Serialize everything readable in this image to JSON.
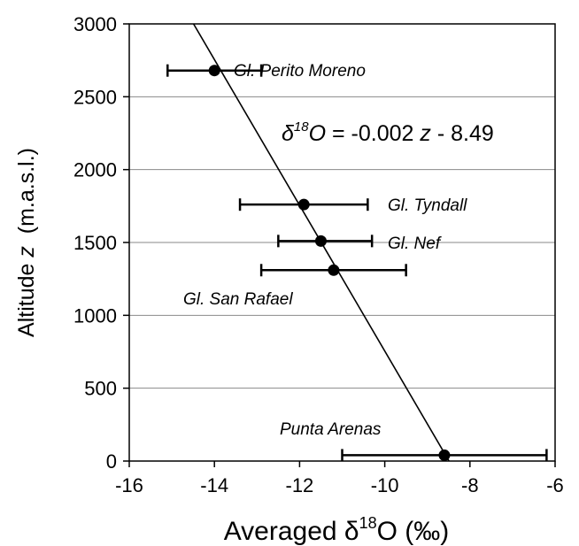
{
  "chart_data": {
    "type": "scatter",
    "xlabel_prefix": "Averaged δ",
    "xlabel_sup": "18",
    "xlabel_suffix": "O (‰)",
    "ylabel_prefix": "Altitude ",
    "ylabel_var": "z",
    "ylabel_suffix": "  (m.a.s.l.)",
    "xlim": [
      -16,
      -6
    ],
    "ylim": [
      0,
      3000
    ],
    "xticks": [
      -16,
      -14,
      -12,
      -10,
      -8,
      -6
    ],
    "yticks": [
      0,
      500,
      1000,
      1500,
      2000,
      2500,
      3000
    ],
    "grid": "horizontal",
    "points": [
      {
        "label": "Gl. Perito Moreno",
        "x": -14.0,
        "y": 2680,
        "xerr_low": -15.1,
        "xerr_high": -12.9
      },
      {
        "label": "Gl. Tyndall",
        "x": -11.9,
        "y": 1760,
        "xerr_low": -13.4,
        "xerr_high": -10.4
      },
      {
        "label": "Gl. Nef",
        "x": -11.5,
        "y": 1510,
        "xerr_low": -12.5,
        "xerr_high": -10.3
      },
      {
        "label": "Gl. San Rafael",
        "x": -11.2,
        "y": 1310,
        "xerr_low": -12.9,
        "xerr_high": -9.5
      },
      {
        "label": "Punta Arenas",
        "x": -8.6,
        "y": 40,
        "xerr_low": -11.0,
        "xerr_high": -6.2
      }
    ],
    "fit_line": {
      "slope": -0.002,
      "intercept": -8.49
    },
    "equation": {
      "prefix": "δ",
      "sup": "18",
      "var1": "O",
      "middle": " = -0.002 ",
      "var2": "z",
      "suffix": " - 8.49"
    }
  }
}
